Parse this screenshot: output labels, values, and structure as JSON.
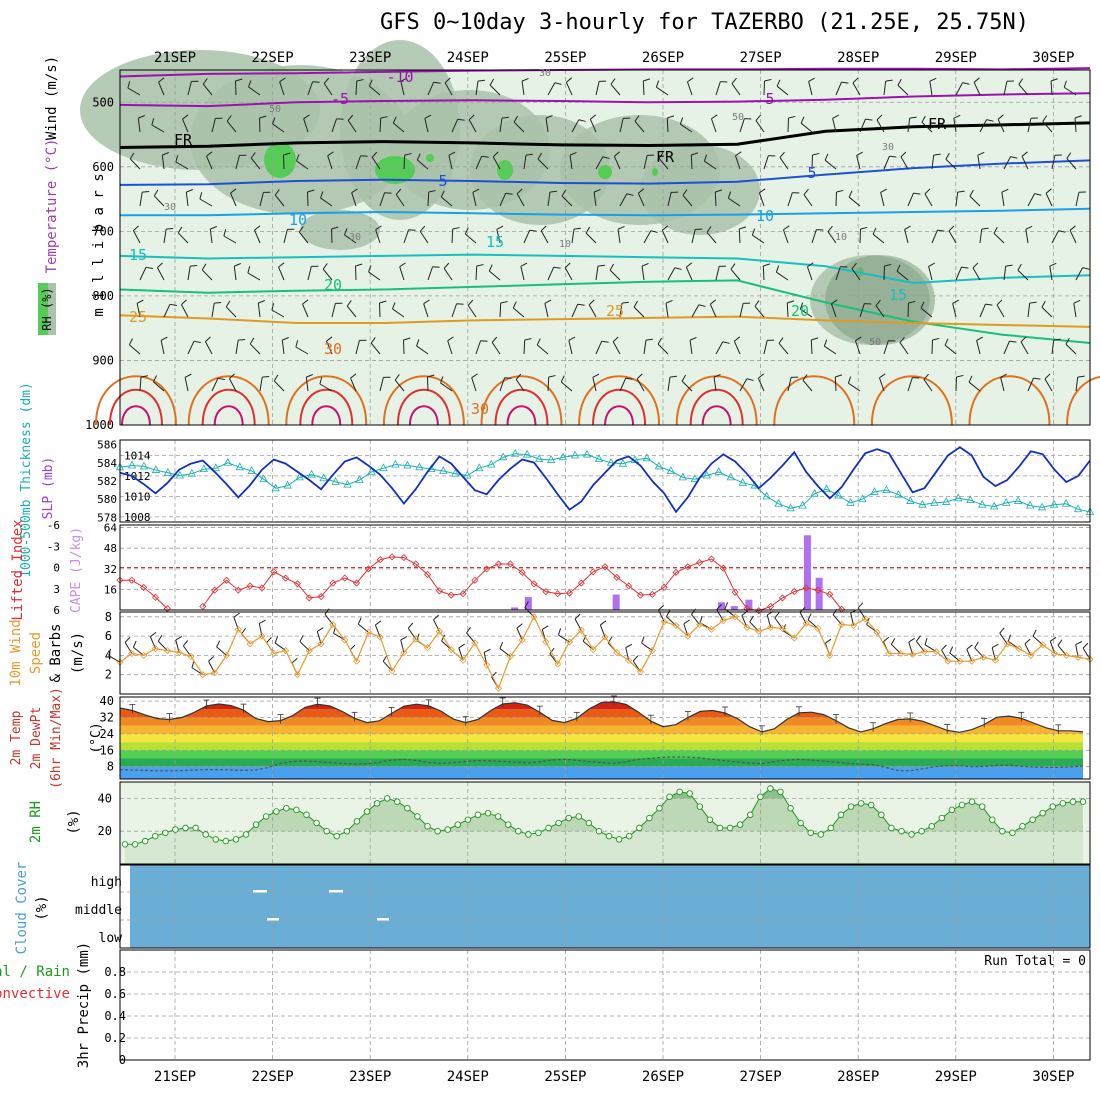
{
  "title": "GFS 0~10day 3-hourly for TAZERBO (21.25E, 25.75N)",
  "colors": {
    "rh_fill_low": "#e6f2e6",
    "rh_fill_mid": "#a9c2a9",
    "rh_fill_high": "#7e9c82",
    "rh_bright": "#55cc55",
    "temp_neg": "#9b12b0",
    "temp_5": "#1f4fd6",
    "temp_10": "#1aa0e6",
    "temp_15": "#17bfbf",
    "temp_20": "#18c07a",
    "temp_25": "#e09a20",
    "temp_30": "#e07020",
    "temp_35": "#e03030",
    "temp_40": "#cc1070",
    "thickness": "#1ab0b0",
    "slp": "#1030c0",
    "lifted_index": "#e03030",
    "cape": "#b070f0",
    "wind10m": "#e89a30",
    "rh2m": "#1a9a1a",
    "cloud": "#6aaed6",
    "grid": "#9e9e9e"
  },
  "chart_data": [
    {
      "id": "cross_section",
      "type": "contour",
      "ylabel": "m i l l i b a r s",
      "yticks": [
        500,
        600,
        700,
        800,
        900,
        1000
      ],
      "ylim": [
        450,
        1000
      ],
      "legend_labels": [
        "RH (%)",
        "Temperature (°C)",
        "Wind (m/s)"
      ],
      "contour_labels": [
        "-10",
        "-5",
        "5",
        "FR",
        "5",
        "FR",
        "FR",
        "5",
        "10",
        "10",
        "15",
        "15",
        "15",
        "20",
        "20",
        "25",
        "25",
        "30",
        "30",
        "50",
        "50",
        "30",
        "30",
        "10",
        "-10",
        "30",
        "30",
        "50"
      ],
      "temperature_isotherms": [
        {
          "level": -10,
          "p": [
            460,
            456,
            455,
            453,
            451,
            450,
            449,
            449,
            448,
            448,
            449,
            447
          ]
        },
        {
          "level": -5,
          "p": [
            504,
            506,
            500,
            498,
            497,
            498,
            500,
            499,
            496,
            491,
            488,
            486
          ]
        },
        {
          "level": 0,
          "p": [
            570,
            568,
            563,
            561,
            563,
            566,
            567,
            565,
            545,
            538,
            535,
            532
          ]
        },
        {
          "level": 5,
          "p": [
            628,
            627,
            622,
            620,
            622,
            625,
            626,
            623,
            612,
            602,
            595,
            590
          ]
        },
        {
          "level": 10,
          "p": [
            675,
            675,
            672,
            670,
            672,
            674,
            675,
            674,
            672,
            670,
            668,
            665
          ]
        },
        {
          "level": 15,
          "p": [
            738,
            742,
            740,
            738,
            736,
            738,
            740,
            742,
            754,
            780,
            772,
            768
          ]
        },
        {
          "level": 20,
          "p": [
            790,
            795,
            792,
            790,
            786,
            782,
            778,
            776,
            810,
            840,
            860,
            873
          ]
        },
        {
          "level": 25,
          "p": [
            830,
            835,
            842,
            842,
            838,
            836,
            834,
            832,
            838,
            842,
            845,
            848
          ]
        }
      ]
    },
    {
      "id": "thickness_slp",
      "type": "line",
      "ylabel_left": "1000-500mb Thickness (dm)",
      "ylabel_right": "SLP (mb)",
      "yticks_left": [
        578,
        580,
        582,
        584,
        586
      ],
      "yticks_right": [
        1008,
        1010,
        1012,
        1014
      ],
      "series": [
        {
          "name": "1000-500mb Thickness (dm)",
          "ylim": [
            577.5,
            586.5
          ],
          "values": [
            583.5,
            583.7,
            583.6,
            583.2,
            582.9,
            582.6,
            582.8,
            583.3,
            583.4,
            584.0,
            583.5,
            583.1,
            582.2,
            581.2,
            581.5,
            582.4,
            582.7,
            582.3,
            581.9,
            581.6,
            582.1,
            583.0,
            583.4,
            583.8,
            583.7,
            583.5,
            583.3,
            583.1,
            582.8,
            582.6,
            583.4,
            583.8,
            584.6,
            585.0,
            584.9,
            584.4,
            584.3,
            584.6,
            584.8,
            584.9,
            584.4,
            584.0,
            583.9,
            584.3,
            584.5,
            583.6,
            583.1,
            582.4,
            582.2,
            582.6,
            583.0,
            582.4,
            581.8,
            581.5,
            580.3,
            579.5,
            579.0,
            579.3,
            580.6,
            581.1,
            580.4,
            579.6,
            580.0,
            580.8,
            581.0,
            580.5,
            579.8,
            579.4,
            579.6,
            579.7,
            580.1,
            579.9,
            579.4,
            579.2,
            579.6,
            579.8,
            579.3,
            579.1,
            579.4,
            579.5,
            578.9,
            578.6
          ]
        },
        {
          "name": "SLP (mb)",
          "ylim": [
            1007.5,
            1015.5
          ],
          "values": [
            1012.3,
            1012.0,
            1011.2,
            1010.3,
            1011.3,
            1012.6,
            1013.2,
            1013.5,
            1012.4,
            1011.2,
            1009.9,
            1011.1,
            1012.6,
            1013.6,
            1013.2,
            1012.4,
            1011.6,
            1010.7,
            1012.1,
            1013.4,
            1013.8,
            1013.0,
            1012.1,
            1010.8,
            1009.3,
            1010.7,
            1012.4,
            1013.9,
            1013.2,
            1011.9,
            1010.6,
            1010.2,
            1011.6,
            1012.7,
            1013.6,
            1013.3,
            1011.8,
            1010.2,
            1008.7,
            1009.5,
            1011.1,
            1012.3,
            1013.5,
            1013.9,
            1013.0,
            1011.5,
            1010.3,
            1008.5,
            1009.9,
            1011.8,
            1013.2,
            1014.1,
            1013.4,
            1012.2,
            1010.8,
            1011.8,
            1013.0,
            1014.3,
            1012.4,
            1011.0,
            1009.8,
            1010.9,
            1012.6,
            1014.2,
            1014.6,
            1014.2,
            1012.3,
            1010.4,
            1010.8,
            1012.4,
            1014.0,
            1014.8,
            1014.0,
            1011.9,
            1011.0,
            1011.6,
            1012.9,
            1014.4,
            1014.1,
            1012.6,
            1011.4,
            1012.0,
            1013.5
          ]
        }
      ]
    },
    {
      "id": "li_cape",
      "type": "line+bar",
      "ylabel_left": "Lifted Index",
      "ylabel_right": "CAPE (J/kg)",
      "yticks_left": [
        "-6",
        "-3",
        "0",
        "3",
        "6"
      ],
      "yticks_right": [
        "64",
        "48",
        "32",
        "16"
      ],
      "series": [
        {
          "name": "Lifted Index",
          "ylim": [
            6,
            -6
          ],
          "values": [
            1.8,
            1.8,
            2.8,
            4.2,
            5.8,
            null,
            null,
            5.5,
            3.2,
            1.8,
            3.2,
            2.6,
            2.9,
            0.6,
            1.5,
            2.3,
            4.3,
            4.1,
            2.2,
            1.5,
            2.2,
            0.2,
            -1.1,
            -1.5,
            -1.4,
            -0.5,
            1.0,
            3.3,
            3.9,
            3.7,
            1.8,
            0.2,
            -0.5,
            -0.5,
            0.7,
            2.3,
            3.4,
            3.7,
            3.6,
            2.2,
            0.6,
            -0.1,
            1.4,
            2.6,
            3.9,
            3.8,
            2.8,
            0.7,
            -0.1,
            -0.7,
            -1.2,
            0.1,
            3.5,
            5.8,
            6.1,
            5.5,
            4.3,
            3.4,
            2.9,
            3.2,
            3.8,
            5.9,
            null,
            null,
            null,
            null,
            null,
            null,
            null,
            null,
            null,
            null,
            null,
            null,
            null,
            null,
            null,
            null,
            null,
            null,
            null,
            null,
            null
          ]
        },
        {
          "name": "CAPE (J/kg)",
          "ylim": [
            0,
            66
          ],
          "bars": [
            {
              "day": 3.48,
              "value": 2
            },
            {
              "day": 3.62,
              "value": 10
            },
            {
              "day": 4.52,
              "value": 12
            },
            {
              "day": 5.6,
              "value": 6
            },
            {
              "day": 5.73,
              "value": 3
            },
            {
              "day": 5.88,
              "value": 8
            },
            {
              "day": 6.48,
              "value": 58
            },
            {
              "day": 6.6,
              "value": 25
            }
          ]
        }
      ]
    },
    {
      "id": "wind10m",
      "type": "line",
      "ylabel": "10m Wind Speed & Barbs (m/s)",
      "yticks": [
        2,
        4,
        6,
        8
      ],
      "ylim": [
        0,
        8.5
      ],
      "series": [
        {
          "name": "10m Wind Speed",
          "values": [
            3.3,
            4.2,
            4.0,
            4.7,
            4.5,
            4.3,
            3.9,
            2.0,
            2.2,
            4.0,
            6.7,
            5.2,
            6.0,
            4.2,
            4.5,
            2.0,
            4.5,
            5.2,
            7.2,
            5.6,
            3.4,
            6.4,
            5.9,
            2.4,
            4.3,
            5.7,
            4.8,
            6.5,
            4.6,
            3.5,
            5.3,
            3.0,
            0.6,
            3.9,
            5.6,
            8.0,
            5.4,
            3.1,
            5.4,
            6.6,
            4.6,
            5.9,
            4.3,
            3.5,
            2.3,
            4.5,
            7.5,
            7.1,
            6.0,
            7.2,
            6.7,
            7.6,
            8.0,
            6.9,
            6.5,
            6.9,
            6.8,
            5.8,
            7.3,
            6.8,
            4.0,
            7.2,
            7.1,
            7.8,
            6.4,
            4.2,
            4.2,
            4.1,
            4.4,
            4.4,
            3.4,
            3.4,
            3.4,
            3.8,
            3.5,
            5.2,
            4.7,
            4.0,
            5.1,
            4.2,
            4.0,
            3.8,
            3.6
          ]
        }
      ]
    },
    {
      "id": "temp2m",
      "type": "area",
      "ylabel": "2m Temp 2m DewPt (6hr Min/Max) (°C)",
      "yticks": [
        8,
        16,
        24,
        32,
        40
      ],
      "ylim": [
        2,
        42
      ],
      "series": [
        {
          "name": "2m Temp",
          "values": [
            36.7,
            35.4,
            33.3,
            31.5,
            31.0,
            32.0,
            34.5,
            37.6,
            38.6,
            37.8,
            35.6,
            31.5,
            30.0,
            30.5,
            33.0,
            37.0,
            38.5,
            37.6,
            35.0,
            31.6,
            29.5,
            30.4,
            34.0,
            37.5,
            38.5,
            37.7,
            35.1,
            31.2,
            29.5,
            31.0,
            35.3,
            38.6,
            39.2,
            38.0,
            34.6,
            30.6,
            29.5,
            31.6,
            36.2,
            39.3,
            39.6,
            38.4,
            34.6,
            30.2,
            27.5,
            28.5,
            32.0,
            35.0,
            35.4,
            34.2,
            31.5,
            27.5,
            25.0,
            26.5,
            31.0,
            34.3,
            34.6,
            33.4,
            30.5,
            27.0,
            25.0,
            26.5,
            29.0,
            31.0,
            31.3,
            30.2,
            28.0,
            25.7,
            24.8,
            26.1,
            28.6,
            32.1,
            32.7,
            31.6,
            29.3,
            27.0,
            25.5,
            25.5,
            25.0
          ]
        },
        {
          "name": "2m DewPt",
          "values": [
            6.6,
            6.4,
            6.2,
            6.0,
            6.0,
            6.1,
            6.4,
            6.6,
            6.6,
            6.4,
            6.2,
            6.4,
            7.6,
            9.6,
            10.6,
            10.8,
            10.5,
            10.0,
            9.6,
            9.3,
            9.4,
            10.2,
            11.2,
            11.6,
            11.0,
            10.1,
            9.6,
            10.0,
            10.6,
            11.0,
            10.8,
            10.6,
            10.2,
            9.9,
            10.4,
            11.3,
            11.6,
            11.1,
            10.5,
            10.0,
            9.7,
            10.3,
            11.7,
            12.1,
            12.6,
            12.8,
            12.7,
            12.3,
            11.6,
            10.9,
            10.3,
            9.7,
            9.5,
            10.5,
            11.2,
            11.6,
            11.2,
            10.7,
            10.2,
            9.6,
            9.2,
            9.0,
            7.7,
            6.1,
            6.0,
            7.0,
            8.0,
            8.5,
            8.4,
            8.0,
            8.1,
            8.6,
            8.7,
            8.2,
            7.8,
            7.7,
            7.6,
            7.9,
            8.3
          ]
        }
      ]
    },
    {
      "id": "rh2m",
      "type": "area",
      "ylabel": "2m RH (%)",
      "yticks": [
        20,
        40
      ],
      "ylim": [
        0,
        50
      ],
      "series": [
        {
          "name": "2m RH",
          "values": [
            12,
            12,
            14,
            17,
            19,
            21,
            22,
            22,
            18,
            15,
            14,
            15,
            18,
            24,
            29,
            32,
            34,
            33,
            30,
            25,
            20,
            17,
            20,
            26,
            32,
            37,
            40,
            38,
            34,
            29,
            23,
            20,
            21,
            24,
            27,
            30,
            31,
            29,
            24,
            20,
            18,
            19,
            22,
            25,
            28,
            29,
            25,
            20,
            17,
            15,
            17,
            22,
            28,
            34,
            41,
            44,
            43,
            35,
            27,
            22,
            22,
            24,
            30,
            41,
            46,
            44,
            34,
            25,
            19,
            18,
            22,
            30,
            35,
            37,
            36,
            30,
            22,
            20,
            18,
            20,
            23,
            28,
            33,
            36,
            38,
            35,
            27,
            20,
            19,
            23,
            27,
            31,
            35,
            37,
            38,
            38
          ]
        }
      ]
    },
    {
      "id": "cloud_cover",
      "type": "heatmap",
      "ylabel": "Cloud Cover (%)",
      "rows": [
        "high",
        "middle",
        "low"
      ],
      "value": "full cover"
    },
    {
      "id": "precip",
      "type": "bar",
      "ylabel": "3hr Precip (mm)",
      "legend": [
        "Total / Rain",
        "Convective"
      ],
      "yticks": [
        "0",
        "0.2",
        "0.4",
        "0.6",
        "0.8"
      ],
      "ylim": [
        0,
        1
      ],
      "values": [],
      "run_total": "Run Total = 0"
    }
  ],
  "x_axis": {
    "labels": [
      "21SEP",
      "22SEP",
      "23SEP",
      "24SEP",
      "25SEP",
      "26SEP",
      "27SEP",
      "28SEP",
      "29SEP",
      "30SEP"
    ]
  }
}
